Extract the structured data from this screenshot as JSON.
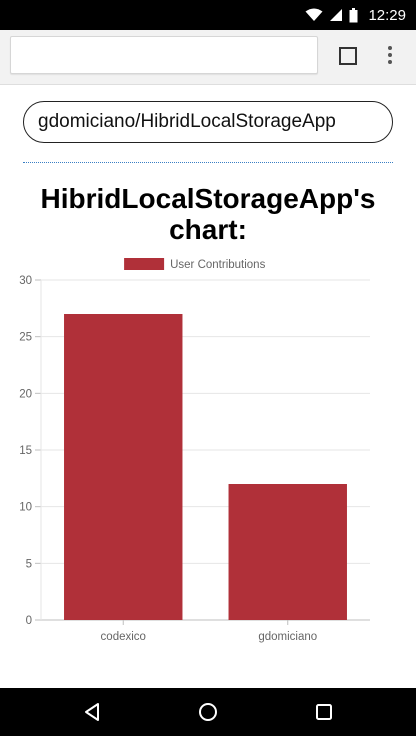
{
  "status_bar": {
    "time": "12:29",
    "icons": [
      "wifi-icon",
      "signal-icon",
      "battery-icon"
    ]
  },
  "browser": {
    "url": "",
    "tabs_icon": "tabs-icon",
    "menu_icon": "more-vert-icon"
  },
  "page": {
    "repo_input_value": "gdomiciano/HibridLocalStorageApp",
    "chart_heading": "HibridLocalStorageApp's chart:"
  },
  "chart_data": {
    "type": "bar",
    "categories": [
      "codexico",
      "gdomiciano"
    ],
    "series": [
      {
        "name": "User Contributions",
        "values": [
          27,
          12
        ],
        "color": "#b03039"
      }
    ],
    "ylim": [
      0,
      30
    ],
    "yticks": [
      0,
      5,
      10,
      15,
      20,
      25,
      30
    ],
    "grid": true,
    "legend": "top",
    "xlabel": "",
    "ylabel": ""
  },
  "nav": {
    "back_icon": "back-icon",
    "home_icon": "home-icon",
    "recents_icon": "recents-icon"
  }
}
